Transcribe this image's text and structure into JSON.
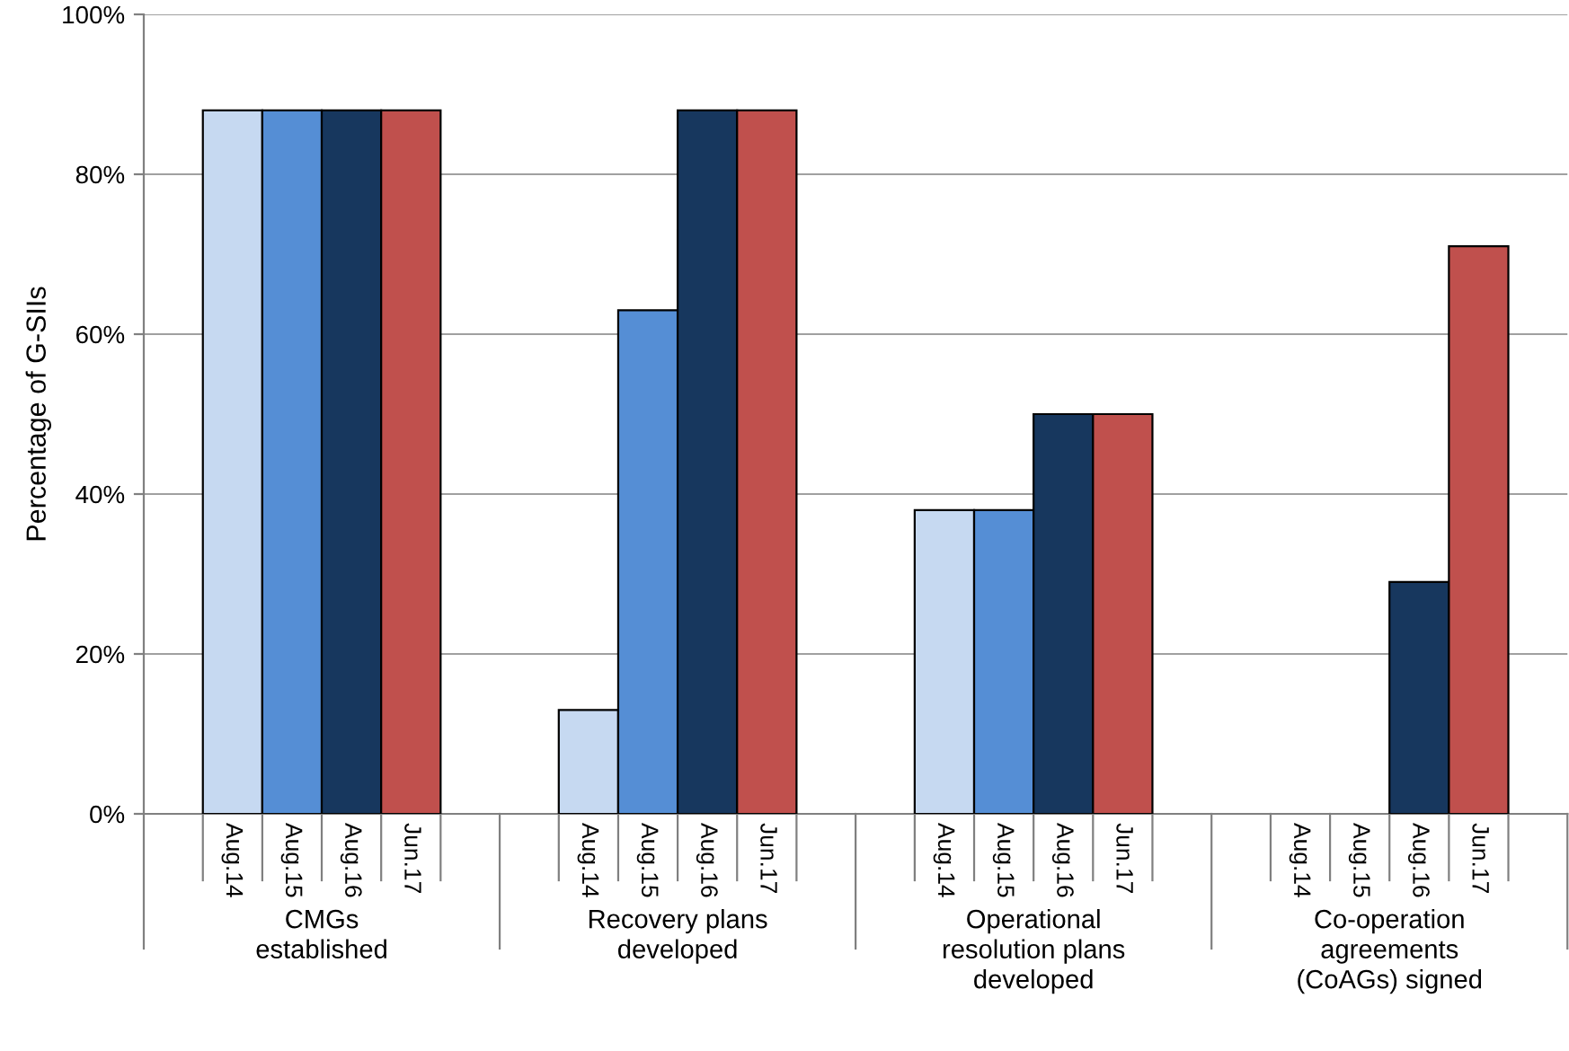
{
  "chart_data": {
    "type": "bar",
    "ylabel": "Percentage of G-SIIs",
    "categories": [
      "CMGs\nestablished",
      "Recovery plans\ndeveloped",
      "Operational\nresolution plans\ndeveloped",
      "Co-operation\nagreements\n(CoAGs) signed"
    ],
    "series": [
      {
        "name": "Aug.14",
        "color": "#c6d9f1",
        "values": [
          88,
          13,
          38,
          0
        ]
      },
      {
        "name": "Aug.15",
        "color": "#558ed5",
        "values": [
          88,
          63,
          38,
          0
        ]
      },
      {
        "name": "Aug.16",
        "color": "#17375e",
        "values": [
          88,
          88,
          50,
          29
        ]
      },
      {
        "name": "Jun.17",
        "color": "#c0504d",
        "values": [
          88,
          88,
          50,
          71
        ]
      }
    ],
    "ylim": [
      0,
      100
    ],
    "yticks": [
      {
        "value": 0,
        "label": "0%"
      },
      {
        "value": 20,
        "label": "20%"
      },
      {
        "value": 40,
        "label": "40%"
      },
      {
        "value": 60,
        "label": "60%"
      },
      {
        "value": 80,
        "label": "80%"
      },
      {
        "value": 100,
        "label": "100%"
      }
    ],
    "grid": "y",
    "legend": false
  }
}
